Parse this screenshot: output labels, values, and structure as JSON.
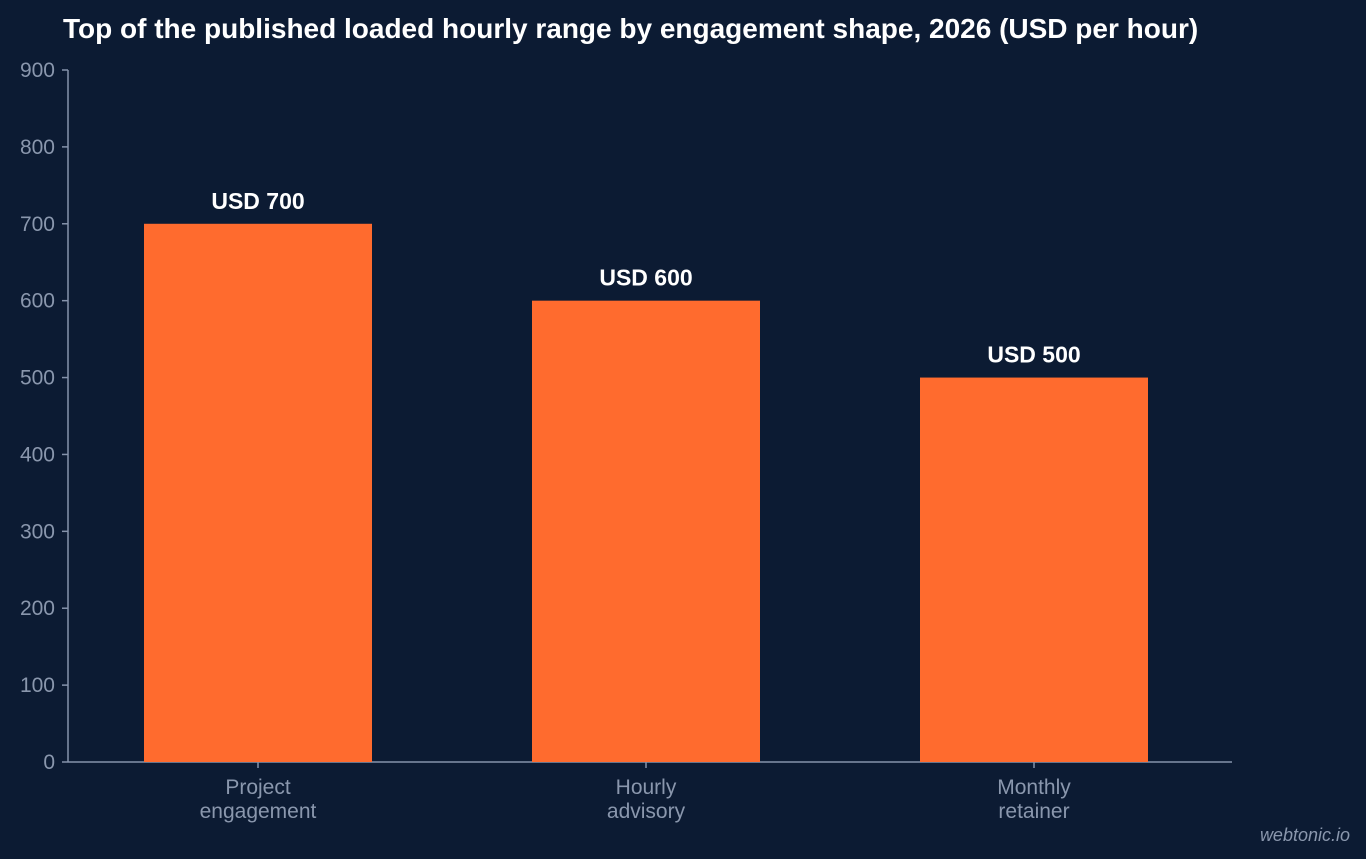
{
  "chart_data": {
    "type": "bar",
    "title": "Top of the published loaded hourly range by engagement shape, 2026 (USD per hour)",
    "xlabel": "",
    "ylabel": "",
    "categories": [
      [
        "Project",
        "engagement"
      ],
      [
        "Hourly",
        "advisory"
      ],
      [
        "Monthly",
        "retainer"
      ]
    ],
    "values": [
      700,
      600,
      500
    ],
    "value_labels": [
      "USD 700",
      "USD 600",
      "USD 500"
    ],
    "ylim": [
      0,
      900
    ],
    "yticks": [
      0,
      100,
      200,
      300,
      400,
      500,
      600,
      700,
      800,
      900
    ],
    "grid": false,
    "legend": "none"
  },
  "credit": "webtonic.io",
  "colors": {
    "background": "#0c1b33",
    "bar": "#ff6b2e",
    "axis": "#8593ab",
    "tick_text": "#8a97ad",
    "title": "#ffffff",
    "value_label": "#ffffff"
  }
}
